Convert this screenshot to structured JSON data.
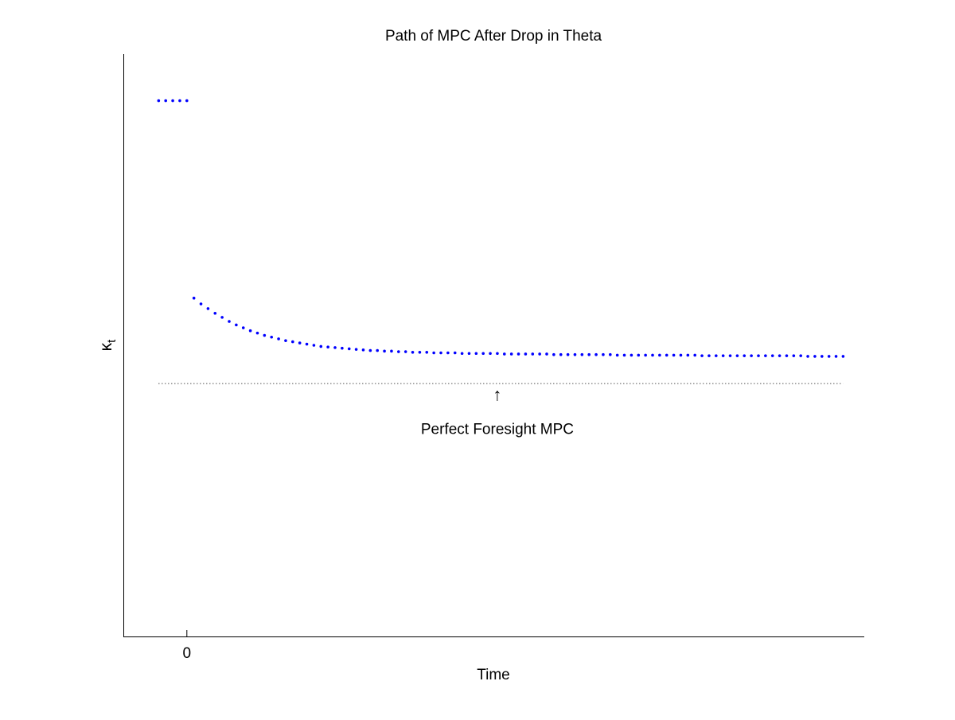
{
  "chart_data": {
    "type": "scatter",
    "title": "Path of MPC After Drop in Theta",
    "xlabel": "Time",
    "ylabel": "κt",
    "ylabel_main": "κ",
    "ylabel_sub": "t",
    "x_ticks": [
      0
    ],
    "x_tick_labels": [
      "0"
    ],
    "xlim": [
      -9,
      96
    ],
    "ylim": [
      0,
      100
    ],
    "grid": false,
    "legend": "none",
    "marker_color": "#0000ff",
    "reference_line": {
      "value": 43.5,
      "style": "dotted",
      "color": "#000000",
      "x_range": [
        -4,
        93
      ]
    },
    "annotation": {
      "text": "Perfect Foresight MPC",
      "arrow": "↑",
      "x": 44,
      "y": 43.5
    },
    "series": [
      {
        "pre_drop": {
          "x": [
            -4,
            -3,
            -2,
            -1,
            0
          ],
          "y": [
            92,
            92,
            92,
            92,
            92
          ]
        },
        "post_drop": {
          "x": [
            1,
            2,
            3,
            4,
            5,
            6,
            7,
            8,
            9,
            10,
            11,
            12,
            13,
            14,
            15,
            16,
            17,
            18,
            19,
            20,
            21,
            22,
            23,
            24,
            25,
            26,
            27,
            28,
            29,
            30,
            31,
            32,
            33,
            34,
            35,
            36,
            37,
            38,
            39,
            40,
            41,
            42,
            43,
            44,
            45,
            46,
            47,
            48,
            49,
            50,
            51,
            52,
            53,
            54,
            55,
            56,
            57,
            58,
            59,
            60,
            61,
            62,
            63,
            64,
            65,
            66,
            67,
            68,
            69,
            70,
            71,
            72,
            73,
            74,
            75,
            76,
            77,
            78,
            79,
            80,
            81,
            82,
            83,
            84,
            85,
            86,
            87,
            88,
            89,
            90,
            91,
            92,
            93
          ],
          "y": [
            58.1,
            57.1,
            56.3,
            55.5,
            54.8,
            54.1,
            53.5,
            53.0,
            52.5,
            52.1,
            51.7,
            51.4,
            51.1,
            50.8,
            50.6,
            50.4,
            50.2,
            50.0,
            49.8,
            49.7,
            49.6,
            49.5,
            49.4,
            49.3,
            49.2,
            49.1,
            49.1,
            49.0,
            49.0,
            48.9,
            48.9,
            48.8,
            48.8,
            48.8,
            48.7,
            48.7,
            48.7,
            48.7,
            48.6,
            48.6,
            48.6,
            48.6,
            48.6,
            48.6,
            48.5,
            48.5,
            48.5,
            48.5,
            48.5,
            48.5,
            48.5,
            48.4,
            48.4,
            48.4,
            48.4,
            48.4,
            48.4,
            48.4,
            48.4,
            48.4,
            48.3,
            48.3,
            48.3,
            48.3,
            48.3,
            48.3,
            48.3,
            48.3,
            48.3,
            48.3,
            48.3,
            48.3,
            48.2,
            48.2,
            48.2,
            48.2,
            48.2,
            48.2,
            48.2,
            48.2,
            48.2,
            48.2,
            48.2,
            48.2,
            48.2,
            48.2,
            48.2,
            48.1,
            48.1,
            48.1,
            48.1,
            48.1,
            48.1
          ]
        }
      }
    ]
  }
}
